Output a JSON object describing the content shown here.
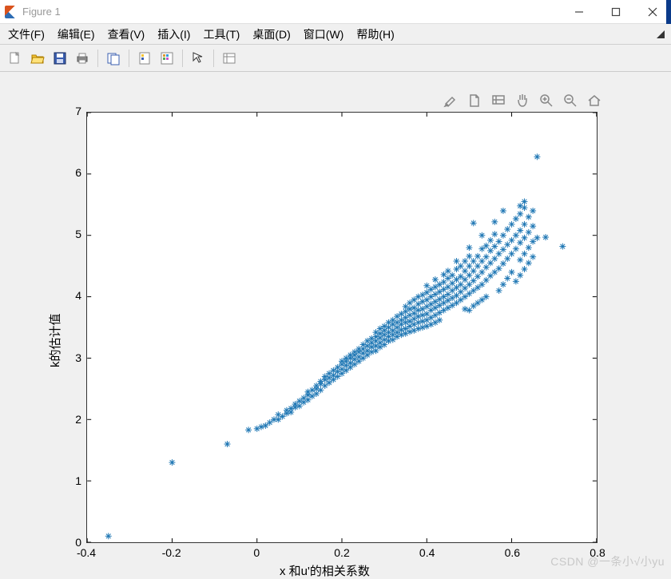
{
  "window": {
    "title": "Figure 1",
    "background": "#f0f0f0"
  },
  "menubar": {
    "items": [
      "文件(F)",
      "编辑(E)",
      "查看(V)",
      "插入(I)",
      "工具(T)",
      "桌面(D)",
      "窗口(W)",
      "帮助(H)"
    ]
  },
  "toolbar_icons": [
    "new",
    "open",
    "save",
    "print",
    "sep",
    "print-preview",
    "sep",
    "link",
    "insert-colorbar",
    "sep",
    "arrow",
    "sep",
    "dataviewer"
  ],
  "axes_toolbar_icons": [
    "brush",
    "restoreview",
    "datacursor",
    "pan",
    "zoomin",
    "zoomout",
    "home"
  ],
  "watermark": "CSDN @一条小√小yu",
  "chart": {
    "type": "scatter",
    "xlabel": "x 和u'的相关系数",
    "ylabel": "k的估计值",
    "xlim": [
      -0.4,
      0.8
    ],
    "ylim": [
      0,
      7
    ],
    "xtick_step": 0.2,
    "ytick_step": 1,
    "xticks": [
      -0.4,
      -0.2,
      0,
      0.2,
      0.4,
      0.6,
      0.8
    ],
    "yticks": [
      0,
      1,
      2,
      3,
      4,
      5,
      6,
      7
    ],
    "marker": "*",
    "marker_size": 8,
    "marker_color": "#1f77b4",
    "axes_box_color": "#333333",
    "axes_bg": "#ffffff",
    "label_fontsize": 15,
    "tick_fontsize": 14,
    "points": [
      [
        -0.35,
        0.1
      ],
      [
        -0.2,
        1.3
      ],
      [
        -0.07,
        1.6
      ],
      [
        -0.02,
        1.83
      ],
      [
        0.0,
        1.85
      ],
      [
        0.01,
        1.88
      ],
      [
        0.02,
        1.9
      ],
      [
        0.03,
        1.95
      ],
      [
        0.04,
        2.0
      ],
      [
        0.05,
        2.0
      ],
      [
        0.05,
        2.08
      ],
      [
        0.06,
        2.05
      ],
      [
        0.07,
        2.1
      ],
      [
        0.07,
        2.15
      ],
      [
        0.08,
        2.12
      ],
      [
        0.08,
        2.18
      ],
      [
        0.09,
        2.2
      ],
      [
        0.09,
        2.25
      ],
      [
        0.1,
        2.22
      ],
      [
        0.1,
        2.3
      ],
      [
        0.11,
        2.28
      ],
      [
        0.11,
        2.35
      ],
      [
        0.12,
        2.32
      ],
      [
        0.12,
        2.4
      ],
      [
        0.12,
        2.45
      ],
      [
        0.13,
        2.38
      ],
      [
        0.13,
        2.48
      ],
      [
        0.14,
        2.42
      ],
      [
        0.14,
        2.5
      ],
      [
        0.14,
        2.55
      ],
      [
        0.15,
        2.48
      ],
      [
        0.15,
        2.58
      ],
      [
        0.15,
        2.62
      ],
      [
        0.16,
        2.55
      ],
      [
        0.16,
        2.65
      ],
      [
        0.16,
        2.7
      ],
      [
        0.17,
        2.6
      ],
      [
        0.17,
        2.68
      ],
      [
        0.17,
        2.75
      ],
      [
        0.18,
        2.65
      ],
      [
        0.18,
        2.72
      ],
      [
        0.18,
        2.8
      ],
      [
        0.19,
        2.7
      ],
      [
        0.19,
        2.78
      ],
      [
        0.19,
        2.85
      ],
      [
        0.2,
        2.75
      ],
      [
        0.2,
        2.82
      ],
      [
        0.2,
        2.9
      ],
      [
        0.2,
        2.95
      ],
      [
        0.21,
        2.8
      ],
      [
        0.21,
        2.88
      ],
      [
        0.21,
        2.95
      ],
      [
        0.21,
        3.0
      ],
      [
        0.22,
        2.85
      ],
      [
        0.22,
        2.92
      ],
      [
        0.22,
        3.0
      ],
      [
        0.22,
        3.05
      ],
      [
        0.23,
        2.9
      ],
      [
        0.23,
        2.98
      ],
      [
        0.23,
        3.05
      ],
      [
        0.23,
        3.1
      ],
      [
        0.24,
        2.95
      ],
      [
        0.24,
        3.02
      ],
      [
        0.24,
        3.1
      ],
      [
        0.24,
        3.15
      ],
      [
        0.25,
        3.0
      ],
      [
        0.25,
        3.08
      ],
      [
        0.25,
        3.15
      ],
      [
        0.25,
        3.22
      ],
      [
        0.26,
        3.05
      ],
      [
        0.26,
        3.12
      ],
      [
        0.26,
        3.2
      ],
      [
        0.26,
        3.28
      ],
      [
        0.27,
        3.1
      ],
      [
        0.27,
        3.18
      ],
      [
        0.27,
        3.25
      ],
      [
        0.27,
        3.32
      ],
      [
        0.28,
        3.12
      ],
      [
        0.28,
        3.2
      ],
      [
        0.28,
        3.28
      ],
      [
        0.28,
        3.35
      ],
      [
        0.28,
        3.42
      ],
      [
        0.29,
        3.18
      ],
      [
        0.29,
        3.25
      ],
      [
        0.29,
        3.33
      ],
      [
        0.29,
        3.4
      ],
      [
        0.29,
        3.48
      ],
      [
        0.3,
        3.22
      ],
      [
        0.3,
        3.3
      ],
      [
        0.3,
        3.38
      ],
      [
        0.3,
        3.45
      ],
      [
        0.3,
        3.52
      ],
      [
        0.31,
        3.28
      ],
      [
        0.31,
        3.35
      ],
      [
        0.31,
        3.42
      ],
      [
        0.31,
        3.5
      ],
      [
        0.31,
        3.58
      ],
      [
        0.32,
        3.3
      ],
      [
        0.32,
        3.38
      ],
      [
        0.32,
        3.45
      ],
      [
        0.32,
        3.55
      ],
      [
        0.32,
        3.62
      ],
      [
        0.33,
        3.35
      ],
      [
        0.33,
        3.42
      ],
      [
        0.33,
        3.5
      ],
      [
        0.33,
        3.58
      ],
      [
        0.33,
        3.68
      ],
      [
        0.34,
        3.38
      ],
      [
        0.34,
        3.46
      ],
      [
        0.34,
        3.55
      ],
      [
        0.34,
        3.62
      ],
      [
        0.34,
        3.72
      ],
      [
        0.35,
        3.4
      ],
      [
        0.35,
        3.48
      ],
      [
        0.35,
        3.58
      ],
      [
        0.35,
        3.66
      ],
      [
        0.35,
        3.76
      ],
      [
        0.35,
        3.84
      ],
      [
        0.36,
        3.43
      ],
      [
        0.36,
        3.52
      ],
      [
        0.36,
        3.6
      ],
      [
        0.36,
        3.7
      ],
      [
        0.36,
        3.8
      ],
      [
        0.36,
        3.9
      ],
      [
        0.37,
        3.45
      ],
      [
        0.37,
        3.55
      ],
      [
        0.37,
        3.64
      ],
      [
        0.37,
        3.73
      ],
      [
        0.37,
        3.82
      ],
      [
        0.37,
        3.95
      ],
      [
        0.38,
        3.48
      ],
      [
        0.38,
        3.58
      ],
      [
        0.38,
        3.68
      ],
      [
        0.38,
        3.78
      ],
      [
        0.38,
        3.88
      ],
      [
        0.38,
        4.0
      ],
      [
        0.39,
        3.5
      ],
      [
        0.39,
        3.6
      ],
      [
        0.39,
        3.7
      ],
      [
        0.39,
        3.8
      ],
      [
        0.39,
        3.92
      ],
      [
        0.39,
        4.03
      ],
      [
        0.4,
        3.52
      ],
      [
        0.4,
        3.62
      ],
      [
        0.4,
        3.72
      ],
      [
        0.4,
        3.84
      ],
      [
        0.4,
        3.95
      ],
      [
        0.4,
        4.07
      ],
      [
        0.4,
        4.18
      ],
      [
        0.41,
        3.55
      ],
      [
        0.41,
        3.66
      ],
      [
        0.41,
        3.78
      ],
      [
        0.41,
        3.88
      ],
      [
        0.41,
        4.0
      ],
      [
        0.41,
        4.12
      ],
      [
        0.42,
        3.58
      ],
      [
        0.42,
        3.7
      ],
      [
        0.42,
        3.82
      ],
      [
        0.42,
        3.92
      ],
      [
        0.42,
        4.04
      ],
      [
        0.42,
        4.16
      ],
      [
        0.42,
        4.28
      ],
      [
        0.43,
        3.62
      ],
      [
        0.43,
        3.74
      ],
      [
        0.43,
        3.86
      ],
      [
        0.43,
        3.96
      ],
      [
        0.43,
        4.08
      ],
      [
        0.43,
        4.2
      ],
      [
        0.44,
        3.78
      ],
      [
        0.44,
        3.9
      ],
      [
        0.44,
        4.0
      ],
      [
        0.44,
        4.12
      ],
      [
        0.44,
        4.24
      ],
      [
        0.44,
        4.36
      ],
      [
        0.45,
        3.82
      ],
      [
        0.45,
        3.94
      ],
      [
        0.45,
        4.04
      ],
      [
        0.45,
        4.16
      ],
      [
        0.45,
        4.3
      ],
      [
        0.45,
        4.42
      ],
      [
        0.46,
        3.86
      ],
      [
        0.46,
        3.98
      ],
      [
        0.46,
        4.1
      ],
      [
        0.46,
        4.22
      ],
      [
        0.46,
        4.35
      ],
      [
        0.47,
        3.9
      ],
      [
        0.47,
        4.02
      ],
      [
        0.47,
        4.15
      ],
      [
        0.47,
        4.28
      ],
      [
        0.47,
        4.45
      ],
      [
        0.47,
        4.58
      ],
      [
        0.48,
        3.95
      ],
      [
        0.48,
        4.08
      ],
      [
        0.48,
        4.2
      ],
      [
        0.48,
        4.33
      ],
      [
        0.48,
        4.5
      ],
      [
        0.49,
        3.8
      ],
      [
        0.49,
        4.0
      ],
      [
        0.49,
        4.14
      ],
      [
        0.49,
        4.28
      ],
      [
        0.49,
        4.42
      ],
      [
        0.49,
        4.58
      ],
      [
        0.5,
        3.78
      ],
      [
        0.5,
        4.05
      ],
      [
        0.5,
        4.2
      ],
      [
        0.5,
        4.35
      ],
      [
        0.5,
        4.5
      ],
      [
        0.5,
        4.66
      ],
      [
        0.5,
        4.8
      ],
      [
        0.51,
        3.85
      ],
      [
        0.51,
        4.1
      ],
      [
        0.51,
        4.26
      ],
      [
        0.51,
        4.42
      ],
      [
        0.51,
        4.58
      ],
      [
        0.51,
        5.2
      ],
      [
        0.52,
        3.9
      ],
      [
        0.52,
        4.15
      ],
      [
        0.52,
        4.33
      ],
      [
        0.52,
        4.5
      ],
      [
        0.52,
        4.66
      ],
      [
        0.53,
        3.95
      ],
      [
        0.53,
        4.2
      ],
      [
        0.53,
        4.4
      ],
      [
        0.53,
        4.58
      ],
      [
        0.53,
        4.78
      ],
      [
        0.53,
        5.0
      ],
      [
        0.54,
        4.0
      ],
      [
        0.54,
        4.27
      ],
      [
        0.54,
        4.48
      ],
      [
        0.54,
        4.65
      ],
      [
        0.54,
        4.83
      ],
      [
        0.55,
        4.34
      ],
      [
        0.55,
        4.55
      ],
      [
        0.55,
        4.75
      ],
      [
        0.55,
        4.92
      ],
      [
        0.56,
        4.4
      ],
      [
        0.56,
        4.62
      ],
      [
        0.56,
        4.82
      ],
      [
        0.56,
        5.02
      ],
      [
        0.56,
        5.22
      ],
      [
        0.57,
        4.1
      ],
      [
        0.57,
        4.46
      ],
      [
        0.57,
        4.7
      ],
      [
        0.57,
        4.9
      ],
      [
        0.58,
        4.2
      ],
      [
        0.58,
        4.54
      ],
      [
        0.58,
        4.77
      ],
      [
        0.58,
        5.0
      ],
      [
        0.58,
        5.4
      ],
      [
        0.59,
        4.3
      ],
      [
        0.59,
        4.62
      ],
      [
        0.59,
        4.85
      ],
      [
        0.59,
        5.1
      ],
      [
        0.6,
        4.4
      ],
      [
        0.6,
        4.7
      ],
      [
        0.6,
        4.92
      ],
      [
        0.6,
        5.18
      ],
      [
        0.61,
        4.25
      ],
      [
        0.61,
        4.78
      ],
      [
        0.61,
        5.0
      ],
      [
        0.61,
        5.27
      ],
      [
        0.62,
        4.35
      ],
      [
        0.62,
        4.6
      ],
      [
        0.62,
        4.88
      ],
      [
        0.62,
        5.08
      ],
      [
        0.62,
        5.35
      ],
      [
        0.62,
        5.48
      ],
      [
        0.63,
        4.45
      ],
      [
        0.63,
        4.7
      ],
      [
        0.63,
        4.96
      ],
      [
        0.63,
        5.18
      ],
      [
        0.63,
        5.45
      ],
      [
        0.63,
        5.55
      ],
      [
        0.64,
        4.55
      ],
      [
        0.64,
        4.8
      ],
      [
        0.64,
        5.05
      ],
      [
        0.64,
        5.3
      ],
      [
        0.65,
        4.65
      ],
      [
        0.65,
        4.9
      ],
      [
        0.65,
        5.15
      ],
      [
        0.65,
        5.4
      ],
      [
        0.66,
        4.96
      ],
      [
        0.66,
        6.28
      ],
      [
        0.68,
        4.97
      ],
      [
        0.72,
        4.82
      ]
    ]
  }
}
